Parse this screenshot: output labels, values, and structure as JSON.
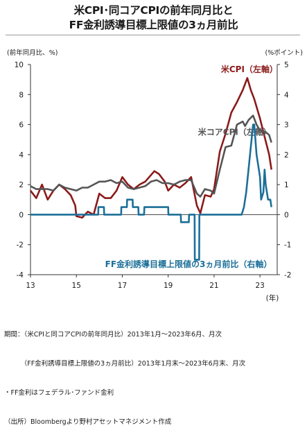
{
  "title_line1": "米CPI･同コアCPIの前年同月比と",
  "title_line2": "FF金利誘導目標上限値の3ヵ月前比",
  "unit_left": "(前年同月比、%)",
  "unit_right": "(%ポイント)",
  "notes": [
    "期間：（米CPIと同コアCPIの前年同月比）2013年1月～2023年6月、月次",
    "　　　（FF金利誘導目標上限値の3ヵ月前比）2013年1月末～2023年6月末、月次",
    "・FF金利はフェデラル･ファンド金利",
    "（出所）Bloombergより野村アセットマネジメント作成"
  ],
  "colors": {
    "cpi": "#8b1a1a",
    "core": "#555555",
    "ff": "#1b6f98"
  },
  "chart_data": {
    "type": "line",
    "x_unit": "年",
    "xlim": [
      2013.0,
      2023.75
    ],
    "x_ticks": [
      2013,
      2015,
      2017,
      2019,
      2021,
      2023
    ],
    "x_tick_labels": [
      "13",
      "15",
      "17",
      "19",
      "21",
      "23"
    ],
    "x_unit_label": "(年)",
    "ylim_left": [
      -4,
      10
    ],
    "y_ticks_left": [
      -4,
      -2,
      0,
      2,
      4,
      6,
      8,
      10
    ],
    "ylim_right": [
      -2,
      5
    ],
    "y_ticks_right": [
      -2,
      -1,
      0,
      1,
      2,
      3,
      4,
      5
    ],
    "grid": false,
    "series": [
      {
        "name": "米CPI（左軸）",
        "axis": "left",
        "color": "#8b1a1a",
        "label_pos": [
          2021.3,
          9.5
        ],
        "points": [
          [
            2013.0,
            1.6
          ],
          [
            2013.25,
            1.1
          ],
          [
            2013.5,
            2.0
          ],
          [
            2013.75,
            1.0
          ],
          [
            2014.0,
            1.6
          ],
          [
            2014.25,
            2.0
          ],
          [
            2014.5,
            1.7
          ],
          [
            2014.75,
            1.3
          ],
          [
            2014.95,
            0.6
          ],
          [
            2015.0,
            -0.1
          ],
          [
            2015.25,
            -0.2
          ],
          [
            2015.5,
            0.2
          ],
          [
            2015.75,
            0.0
          ],
          [
            2016.0,
            1.4
          ],
          [
            2016.25,
            1.1
          ],
          [
            2016.5,
            1.1
          ],
          [
            2016.75,
            1.6
          ],
          [
            2017.0,
            2.5
          ],
          [
            2017.25,
            2.0
          ],
          [
            2017.5,
            1.7
          ],
          [
            2017.75,
            2.0
          ],
          [
            2018.0,
            2.2
          ],
          [
            2018.4,
            2.9
          ],
          [
            2018.6,
            2.7
          ],
          [
            2018.85,
            2.2
          ],
          [
            2019.0,
            1.6
          ],
          [
            2019.25,
            2.0
          ],
          [
            2019.5,
            1.8
          ],
          [
            2019.75,
            2.1
          ],
          [
            2020.0,
            2.5
          ],
          [
            2020.25,
            0.6
          ],
          [
            2020.4,
            0.1
          ],
          [
            2020.6,
            1.3
          ],
          [
            2020.85,
            1.2
          ],
          [
            2021.0,
            1.7
          ],
          [
            2021.25,
            4.2
          ],
          [
            2021.5,
            5.4
          ],
          [
            2021.75,
            6.8
          ],
          [
            2022.0,
            7.5
          ],
          [
            2022.25,
            8.3
          ],
          [
            2022.45,
            9.1
          ],
          [
            2022.6,
            8.3
          ],
          [
            2022.75,
            7.7
          ],
          [
            2023.0,
            6.4
          ],
          [
            2023.25,
            4.9
          ],
          [
            2023.4,
            4.0
          ],
          [
            2023.5,
            3.0
          ]
        ]
      },
      {
        "name": "米コアCPI（左軸）",
        "axis": "left",
        "color": "#555555",
        "label_pos": [
          2020.3,
          5.3
        ],
        "points": [
          [
            2013.0,
            1.9
          ],
          [
            2013.25,
            1.7
          ],
          [
            2013.5,
            1.7
          ],
          [
            2013.75,
            1.7
          ],
          [
            2014.0,
            1.6
          ],
          [
            2014.25,
            2.0
          ],
          [
            2014.5,
            1.8
          ],
          [
            2014.75,
            1.7
          ],
          [
            2015.0,
            1.6
          ],
          [
            2015.25,
            1.8
          ],
          [
            2015.5,
            1.8
          ],
          [
            2015.75,
            2.0
          ],
          [
            2016.0,
            2.2
          ],
          [
            2016.25,
            2.2
          ],
          [
            2016.5,
            2.3
          ],
          [
            2016.75,
            2.1
          ],
          [
            2017.0,
            2.2
          ],
          [
            2017.25,
            1.8
          ],
          [
            2017.5,
            1.7
          ],
          [
            2017.75,
            1.8
          ],
          [
            2018.0,
            1.9
          ],
          [
            2018.25,
            2.2
          ],
          [
            2018.5,
            2.3
          ],
          [
            2018.75,
            2.1
          ],
          [
            2019.0,
            2.1
          ],
          [
            2019.25,
            2.0
          ],
          [
            2019.5,
            2.2
          ],
          [
            2019.75,
            2.3
          ],
          [
            2020.0,
            2.3
          ],
          [
            2020.25,
            1.4
          ],
          [
            2020.4,
            1.2
          ],
          [
            2020.6,
            1.7
          ],
          [
            2020.85,
            1.6
          ],
          [
            2021.0,
            1.4
          ],
          [
            2021.25,
            3.0
          ],
          [
            2021.5,
            4.5
          ],
          [
            2021.75,
            4.6
          ],
          [
            2022.0,
            6.0
          ],
          [
            2022.25,
            6.2
          ],
          [
            2022.35,
            5.9
          ],
          [
            2022.5,
            6.3
          ],
          [
            2022.7,
            6.6
          ],
          [
            2022.85,
            6.0
          ],
          [
            2023.0,
            5.6
          ],
          [
            2023.25,
            5.5
          ],
          [
            2023.4,
            5.3
          ],
          [
            2023.5,
            4.8
          ]
        ]
      },
      {
        "name": "FF金利誘導目標上限値の3ヵ月前比（右軸）",
        "axis": "right",
        "color": "#1b6f98",
        "label_pos": [
          2016.25,
          -1.75
        ],
        "points": [
          [
            2013.0,
            0
          ],
          [
            2015.95,
            0
          ],
          [
            2015.96,
            0.25
          ],
          [
            2016.2,
            0.25
          ],
          [
            2016.21,
            0
          ],
          [
            2016.95,
            0
          ],
          [
            2016.96,
            0.25
          ],
          [
            2017.2,
            0.25
          ],
          [
            2017.21,
            0.5
          ],
          [
            2017.45,
            0.5
          ],
          [
            2017.46,
            0.25
          ],
          [
            2017.7,
            0.25
          ],
          [
            2017.71,
            0
          ],
          [
            2017.95,
            0
          ],
          [
            2017.96,
            0.25
          ],
          [
            2019.0,
            0.25
          ],
          [
            2019.01,
            0
          ],
          [
            2019.55,
            0
          ],
          [
            2019.56,
            -0.25
          ],
          [
            2019.9,
            -0.25
          ],
          [
            2019.91,
            0
          ],
          [
            2020.15,
            0
          ],
          [
            2020.16,
            -1.5
          ],
          [
            2020.35,
            -1.5
          ],
          [
            2020.36,
            0
          ],
          [
            2022.2,
            0
          ],
          [
            2022.3,
            0.25
          ],
          [
            2022.4,
            0.75
          ],
          [
            2022.5,
            1.5
          ],
          [
            2022.6,
            2.25
          ],
          [
            2022.7,
            3.0
          ],
          [
            2022.75,
            3.0
          ],
          [
            2022.85,
            2.0
          ],
          [
            2023.0,
            1.25
          ],
          [
            2023.05,
            0.5
          ],
          [
            2023.15,
            0.75
          ],
          [
            2023.2,
            1.5
          ],
          [
            2023.25,
            1.0
          ],
          [
            2023.35,
            0.5
          ],
          [
            2023.45,
            0.5
          ],
          [
            2023.5,
            0.25
          ]
        ]
      }
    ]
  }
}
